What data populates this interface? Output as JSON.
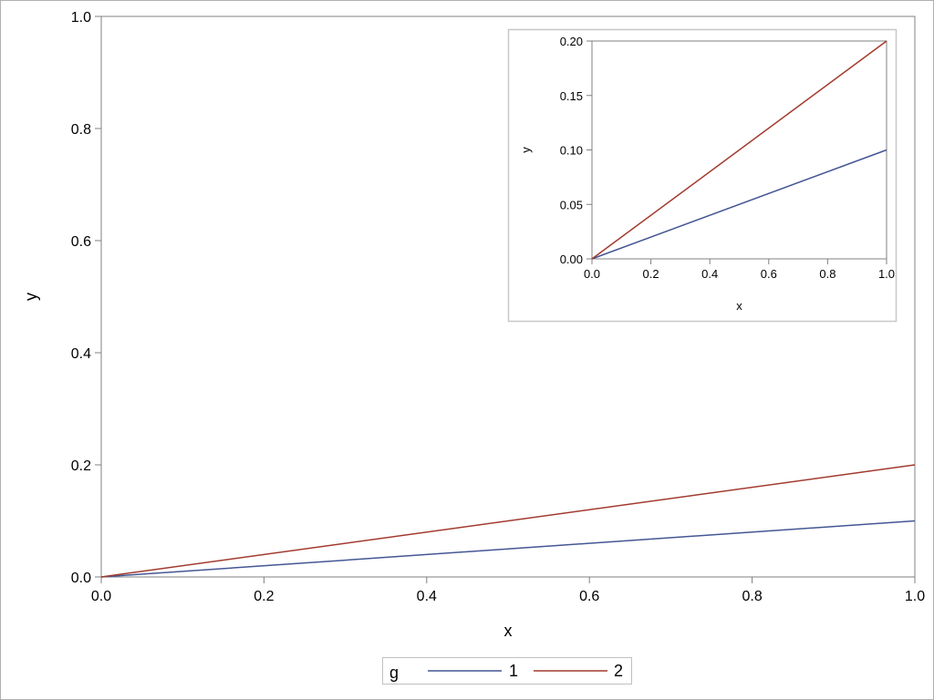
{
  "chart_data": [
    {
      "type": "line",
      "role": "main",
      "xlabel": "x",
      "ylabel": "y",
      "xlim": [
        0,
        1
      ],
      "ylim": [
        0,
        1
      ],
      "xticks": [
        "0.0",
        "0.2",
        "0.4",
        "0.6",
        "0.8",
        "1.0"
      ],
      "yticks": [
        "0.0",
        "0.2",
        "0.4",
        "0.6",
        "0.8",
        "1.0"
      ],
      "grid": false,
      "series": [
        {
          "name": "1",
          "color": "#445694",
          "x": [
            0,
            1
          ],
          "y": [
            0,
            0.1
          ]
        },
        {
          "name": "2",
          "color": "#A23A2E",
          "x": [
            0,
            1
          ],
          "y": [
            0,
            0.2
          ]
        }
      ]
    },
    {
      "type": "line",
      "role": "inset",
      "xlabel": "x",
      "ylabel": "y",
      "xlim": [
        0,
        1
      ],
      "ylim": [
        0,
        0.2
      ],
      "xticks": [
        "0.0",
        "0.2",
        "0.4",
        "0.6",
        "0.8",
        "1.0"
      ],
      "yticks": [
        "0.00",
        "0.05",
        "0.10",
        "0.15",
        "0.20"
      ],
      "grid": false,
      "series": [
        {
          "name": "1",
          "color": "#445694",
          "x": [
            0,
            1
          ],
          "y": [
            0,
            0.1
          ]
        },
        {
          "name": "2",
          "color": "#A23A2E",
          "x": [
            0,
            1
          ],
          "y": [
            0,
            0.2
          ]
        }
      ]
    }
  ],
  "legend": {
    "title": "g",
    "placement": "bottom",
    "items": [
      {
        "label": "1",
        "color": "#445694"
      },
      {
        "label": "2",
        "color": "#A23A2E"
      }
    ]
  }
}
